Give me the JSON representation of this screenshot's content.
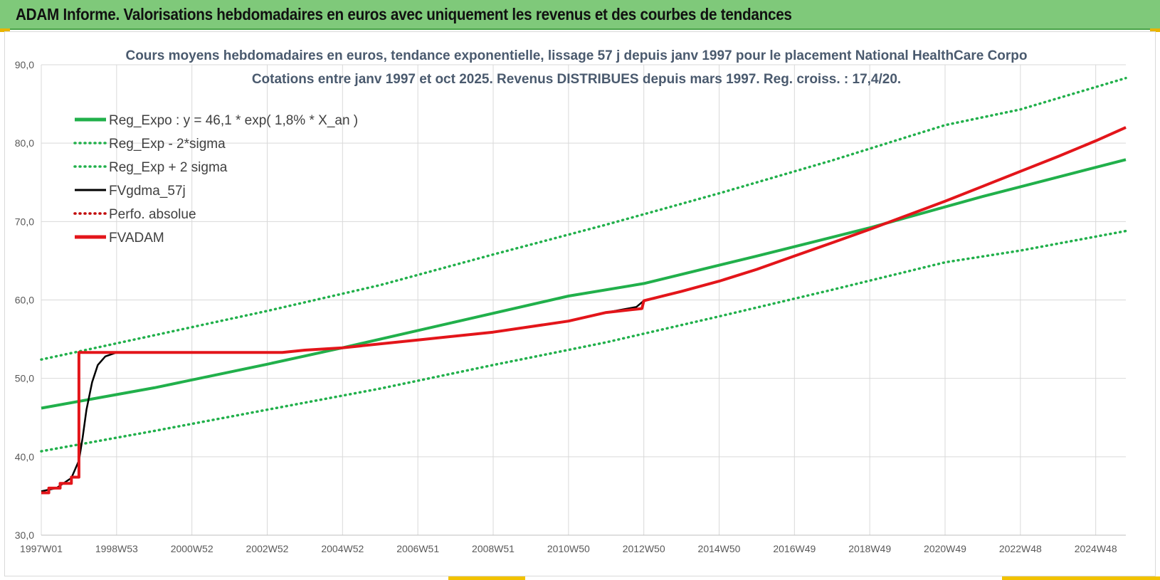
{
  "banner": {
    "title": "ADAM Informe. Valorisations hebdomadaires en euros avec uniquement les revenus et des courbes de tendances"
  },
  "colors": {
    "banner_bg": "#7fc97a",
    "reg_expo": "#21b04b",
    "fvgdma": "#000000",
    "perfo": "#c00000",
    "fvadam": "#e3151a",
    "grid": "#d9d9d9"
  },
  "chart_data": {
    "type": "line",
    "title": [
      "Cours moyens hebdomadaires en euros, tendance exponentielle, lissage 57 j depuis janv 1997 pour le placement National HealthCare Corpo",
      "Cotations entre janv 1997 et oct 2025. Revenus DISTRIBUES depuis mars 1997. Reg. croiss. : 17,4/20."
    ],
    "xlabel": "",
    "ylabel": "",
    "x_range": [
      1997.0,
      2025.8
    ],
    "ylim": [
      30,
      90
    ],
    "y_ticks": [
      30,
      40,
      50,
      60,
      70,
      80,
      90
    ],
    "y_tick_labels": [
      "30,0",
      "40,0",
      "50,0",
      "60,0",
      "70,0",
      "80,0",
      "90,0"
    ],
    "x_ticks": [
      {
        "x": 1997.0,
        "label": "1997W01"
      },
      {
        "x": 1999.0,
        "label": "1998W53"
      },
      {
        "x": 2001.0,
        "label": "2000W52"
      },
      {
        "x": 2003.0,
        "label": "2002W52"
      },
      {
        "x": 2005.0,
        "label": "2004W52"
      },
      {
        "x": 2007.0,
        "label": "2006W51"
      },
      {
        "x": 2009.0,
        "label": "2008W51"
      },
      {
        "x": 2011.0,
        "label": "2010W50"
      },
      {
        "x": 2013.0,
        "label": "2012W50"
      },
      {
        "x": 2015.0,
        "label": "2014W50"
      },
      {
        "x": 2017.0,
        "label": "2016W49"
      },
      {
        "x": 2019.0,
        "label": "2018W49"
      },
      {
        "x": 2021.0,
        "label": "2020W49"
      },
      {
        "x": 2023.0,
        "label": "2022W48"
      },
      {
        "x": 2025.0,
        "label": "2024W48"
      }
    ],
    "grid": true,
    "legend_position": "top-left",
    "series": [
      {
        "name": "Reg_Expo : y = 46,1 * exp( 1,8% *  X_an )",
        "style": "solid",
        "color": "#21b04b",
        "points": [
          [
            1997.0,
            46.2
          ],
          [
            2000.0,
            48.8
          ],
          [
            2003.0,
            51.8
          ],
          [
            2005.0,
            53.9
          ],
          [
            2008.0,
            57.2
          ],
          [
            2011.0,
            60.5
          ],
          [
            2013.0,
            62.1
          ],
          [
            2016.0,
            65.6
          ],
          [
            2019.0,
            69.2
          ],
          [
            2022.0,
            73.2
          ],
          [
            2025.8,
            77.9
          ]
        ]
      },
      {
        "name": "Reg_Exp - 2*sigma",
        "style": "dotted",
        "color": "#21b04b",
        "points": [
          [
            1997.0,
            40.7
          ],
          [
            2000.0,
            43.3
          ],
          [
            2003.0,
            46.0
          ],
          [
            2006.0,
            48.7
          ],
          [
            2009.0,
            51.7
          ],
          [
            2012.0,
            54.6
          ],
          [
            2015.0,
            57.9
          ],
          [
            2018.0,
            61.3
          ],
          [
            2021.0,
            64.8
          ],
          [
            2023.0,
            66.3
          ],
          [
            2025.8,
            68.8
          ]
        ]
      },
      {
        "name": "Reg_Exp + 2 sigma",
        "style": "dotted",
        "color": "#21b04b",
        "points": [
          [
            1997.0,
            52.4
          ],
          [
            2000.0,
            55.5
          ],
          [
            2003.0,
            58.6
          ],
          [
            2006.0,
            61.9
          ],
          [
            2009.0,
            65.8
          ],
          [
            2012.0,
            69.6
          ],
          [
            2015.0,
            73.6
          ],
          [
            2018.0,
            77.8
          ],
          [
            2021.0,
            82.3
          ],
          [
            2023.0,
            84.3
          ],
          [
            2025.8,
            88.3
          ]
        ]
      },
      {
        "name": "FVgdma_57j",
        "style": "solid",
        "color": "#000000",
        "points": [
          [
            1997.0,
            35.6
          ],
          [
            1997.4,
            36.0
          ],
          [
            1997.8,
            37.3
          ],
          [
            1998.0,
            39.5
          ],
          [
            1998.1,
            42.5
          ],
          [
            1998.2,
            46.0
          ],
          [
            1998.35,
            49.5
          ],
          [
            1998.5,
            51.7
          ],
          [
            1998.7,
            52.8
          ],
          [
            1999.0,
            53.3
          ],
          [
            2003.4,
            53.3
          ],
          [
            2004.0,
            53.6
          ],
          [
            2005.0,
            53.9
          ],
          [
            2007.0,
            54.9
          ],
          [
            2009.0,
            55.9
          ],
          [
            2011.0,
            57.3
          ],
          [
            2012.0,
            58.4
          ],
          [
            2012.8,
            59.1
          ],
          [
            2013.0,
            59.9
          ],
          [
            2014.0,
            61.1
          ],
          [
            2015.0,
            62.4
          ],
          [
            2016.0,
            63.9
          ],
          [
            2017.0,
            65.6
          ],
          [
            2018.0,
            67.3
          ],
          [
            2019.0,
            69.0
          ],
          [
            2020.0,
            70.8
          ],
          [
            2021.0,
            72.6
          ],
          [
            2022.0,
            74.5
          ],
          [
            2023.0,
            76.4
          ],
          [
            2024.0,
            78.3
          ],
          [
            2025.0,
            80.3
          ],
          [
            2025.8,
            82.0
          ]
        ]
      },
      {
        "name": "Perfo. absolue",
        "style": "dotted",
        "color": "#c00000",
        "points": []
      },
      {
        "name": "FVADAM",
        "style": "solid",
        "color": "#e3151a",
        "points": [
          [
            1997.0,
            35.4
          ],
          [
            1997.2,
            35.4
          ],
          [
            1997.2,
            36.0
          ],
          [
            1997.5,
            36.0
          ],
          [
            1997.5,
            36.6
          ],
          [
            1997.8,
            36.6
          ],
          [
            1997.8,
            37.4
          ],
          [
            1998.0,
            37.4
          ],
          [
            1998.0,
            53.3
          ],
          [
            2003.4,
            53.3
          ],
          [
            2004.0,
            53.6
          ],
          [
            2005.0,
            53.9
          ],
          [
            2007.0,
            54.9
          ],
          [
            2009.0,
            55.9
          ],
          [
            2011.0,
            57.3
          ],
          [
            2012.0,
            58.4
          ],
          [
            2012.95,
            58.9
          ],
          [
            2013.0,
            59.9
          ],
          [
            2014.0,
            61.1
          ],
          [
            2015.0,
            62.4
          ],
          [
            2016.0,
            63.9
          ],
          [
            2017.0,
            65.6
          ],
          [
            2018.0,
            67.3
          ],
          [
            2019.0,
            69.0
          ],
          [
            2020.0,
            70.8
          ],
          [
            2021.0,
            72.6
          ],
          [
            2022.0,
            74.5
          ],
          [
            2023.0,
            76.4
          ],
          [
            2024.0,
            78.3
          ],
          [
            2025.0,
            80.3
          ],
          [
            2025.8,
            82.0
          ]
        ]
      }
    ]
  }
}
